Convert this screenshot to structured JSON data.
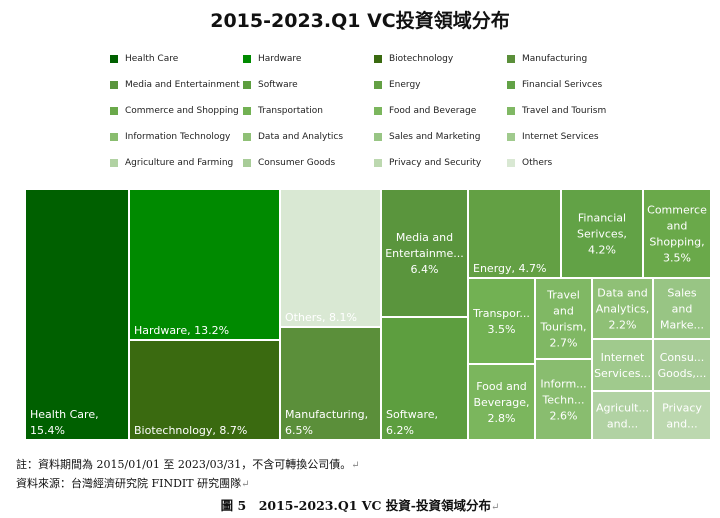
{
  "chart_data": {
    "type": "treemap",
    "title": "2015-2023.Q1 VC投資領域分布",
    "legend_position": "top",
    "items": [
      {
        "name": "Health Care",
        "label": "Health Care,|15.4%",
        "value": 15.4,
        "color": "#006000"
      },
      {
        "name": "Hardware",
        "label": "Hardware, 13.2%",
        "value": 13.2,
        "color": "#008a00"
      },
      {
        "name": "Biotechnology",
        "label": "Biotechnology, 8.7%",
        "value": 8.7,
        "color": "#3a6a10"
      },
      {
        "name": "Manufacturing",
        "label": "Manufacturing,|6.5%",
        "value": 6.5,
        "color": "#5b8f3a"
      },
      {
        "name": "Media and Entertainment",
        "label": "Media and|Entertainme...|6.4%",
        "value": 6.4,
        "color": "#5a953d"
      },
      {
        "name": "Software",
        "label": "Software,|6.2%",
        "value": 6.2,
        "color": "#5d9e3f"
      },
      {
        "name": "Energy",
        "label": "Energy, 4.7%",
        "value": 4.7,
        "color": "#63a044"
      },
      {
        "name": "Financial Serivces",
        "label": "Financial|Serivces,|4.2%",
        "value": 4.2,
        "color": "#62a246"
      },
      {
        "name": "Commerce and Shopping",
        "label": "Commerce|and|Shopping,|3.5%",
        "value": 3.5,
        "color": "#6aa94a"
      },
      {
        "name": "Transportation",
        "label": "Transpor...|3.5%",
        "value": 3.5,
        "color": "#72b153"
      },
      {
        "name": "Food and Beverage",
        "label": "Food and|Beverage,|2.8%",
        "value": 2.8,
        "color": "#7bb65d"
      },
      {
        "name": "Travel and Tourism",
        "label": "Travel|and|Tourism,|2.7%",
        "value": 2.7,
        "color": "#80b864"
      },
      {
        "name": "Information Technology",
        "label": "Inform...|Techn...|2.6%",
        "value": 2.6,
        "color": "#89bd6f"
      },
      {
        "name": "Data and Analytics",
        "label": "Data and|Analytics,|2.2%",
        "value": 2.2,
        "color": "#8fc076"
      },
      {
        "name": "Sales and Marketing",
        "label": "Sales|and|Marke...",
        "value": null,
        "color": "#98c584"
      },
      {
        "name": "Internet Services",
        "label": "Internet|Services...",
        "value": null,
        "color": "#a0ca8d"
      },
      {
        "name": "Consumer Goods",
        "label": "Consu...|Goods,...",
        "value": null,
        "color": "#a8cc98"
      },
      {
        "name": "Agriculture and Farming",
        "label": "Agricult...|and...",
        "value": null,
        "color": "#b1d2a3"
      },
      {
        "name": "Privacy and Security",
        "label": "Privacy|and...",
        "value": null,
        "color": "#bcd8af"
      },
      {
        "name": "Others",
        "label": "Others, 8.1%",
        "value": 8.1,
        "color": "#d9e8d3"
      }
    ]
  },
  "legend_order": [
    "Health Care",
    "Hardware",
    "Biotechnology",
    "Manufacturing",
    "Media and Entertainment",
    "Software",
    "Energy",
    "Financial Serivces",
    "Commerce and Shopping",
    "Transportation",
    "Food and Beverage",
    "Travel and Tourism",
    "Information Technology",
    "Data and Analytics",
    "Sales and Marketing",
    "Internet Services",
    "Agriculture and Farming",
    "Consumer Goods",
    "Privacy and Security",
    "Others"
  ],
  "notes": {
    "period": "註：資料期間為 2015/01/01 至 2023/03/31，不含可轉換公司債。",
    "source": "資料來源：台灣經濟研究院 FINDIT 研究團隊",
    "return_mark": "↵"
  },
  "caption": "圖 5　2015-2023.Q1 VC 投資-投資領域分布"
}
